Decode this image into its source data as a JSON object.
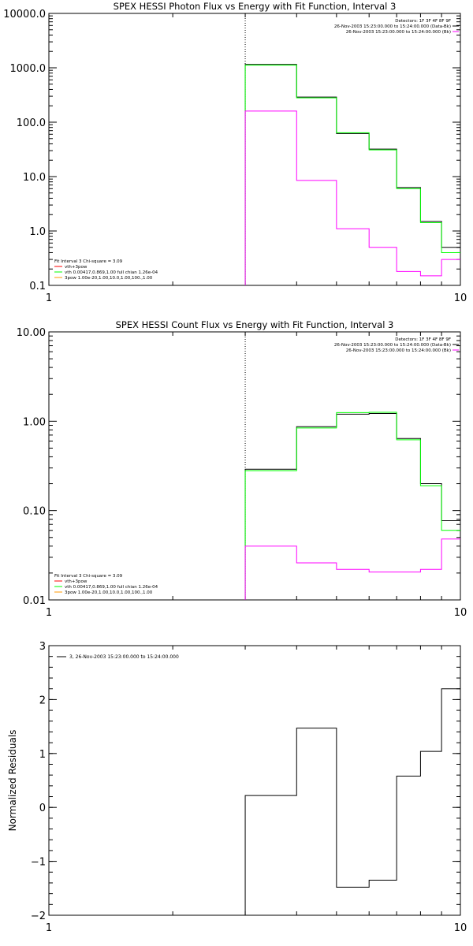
{
  "colors": {
    "black": "#000000",
    "green": "#00ff00",
    "magenta": "#ff00ff",
    "orange": "#ff9900",
    "red": "#ff0000"
  },
  "chart_data": [
    {
      "type": "line",
      "title": "SPEX HESSI Photon Flux vs Energy with Fit Function, Interval 3",
      "x_scale": "log",
      "y_scale": "log",
      "xlim": [
        1,
        10
      ],
      "ylim": [
        0.1,
        10000
      ],
      "x_ticks": [
        {
          "v": 1,
          "label": "1"
        },
        {
          "v": 10,
          "label": "10"
        }
      ],
      "y_ticks": [
        {
          "v": 0.1,
          "label": "0.1"
        },
        {
          "v": 1,
          "label": "1.0"
        },
        {
          "v": 10,
          "label": "10.0"
        },
        {
          "v": 100,
          "label": "100.0"
        },
        {
          "v": 1000,
          "label": "1000.0"
        },
        {
          "v": 10000,
          "label": "10000.0"
        }
      ],
      "vline": 3.0,
      "legend_right": [
        "Detectors: 1F 3F 4F 8F 9F",
        "26-Nov-2003 15:23:00.000 to 15:24:00.000 (Data-Bk)",
        "26-Nov-2003 15:23:00.000 to 15:24:00.000 (Bk)"
      ],
      "legend_right_colors": [
        "",
        "black",
        "magenta"
      ],
      "legend_left": [
        "Fit Interval 3   Chi-square = 3.09",
        "vth+3pow",
        "vth 0.00417,0.869,1.00   full chian 1.26e-04",
        "3pow 1.00e-20,1.00,10.0,1.00,100.,1.00"
      ],
      "legend_left_colors": [
        "",
        "red",
        "green",
        "orange"
      ],
      "edges": [
        3.0,
        4.0,
        5.0,
        6.0,
        7.0,
        8.0,
        9.0,
        10.0
      ],
      "series": [
        {
          "color": "black",
          "values": [
            1150,
            290,
            62,
            32,
            6.3,
            1.5,
            0.5
          ]
        },
        {
          "color": "green",
          "values": [
            1120,
            280,
            64,
            31,
            6.0,
            1.42,
            0.4
          ]
        },
        {
          "color": "magenta",
          "values": [
            160,
            8.5,
            1.1,
            0.5,
            0.18,
            0.15,
            0.3
          ]
        }
      ]
    },
    {
      "type": "line",
      "title": "SPEX HESSI Count Flux vs Energy with Fit Function, Interval 3",
      "x_scale": "log",
      "y_scale": "log",
      "xlim": [
        1,
        10
      ],
      "ylim": [
        0.01,
        10
      ],
      "x_ticks": [
        {
          "v": 1,
          "label": "1"
        },
        {
          "v": 10,
          "label": "10"
        }
      ],
      "y_ticks": [
        {
          "v": 0.01,
          "label": "0.01"
        },
        {
          "v": 0.1,
          "label": "0.10"
        },
        {
          "v": 1,
          "label": "1.00"
        },
        {
          "v": 10,
          "label": "10.00"
        }
      ],
      "vline": 3.0,
      "legend_right": [
        "Detectors: 1F 3F 4F 8F 9F",
        "26-Nov-2003 15:23:00.000 to 15:24:00.000 (Data-Bk)",
        "26-Nov-2003 15:23:00.000 to 15:24:00.000 (Bk)"
      ],
      "legend_right_colors": [
        "",
        "black",
        "magenta"
      ],
      "legend_left": [
        "Fit Interval 3   Chi-square = 3.09",
        "vth+3pow",
        "vth 0.00417,0.869,1.00   full chian 1.26e-04",
        "3pow 1.00e-20,1.00,10.0,1.00,100.,1.00"
      ],
      "legend_left_colors": [
        "",
        "red",
        "green",
        "orange"
      ],
      "edges": [
        3.0,
        4.0,
        5.0,
        6.0,
        7.0,
        8.0,
        9.0,
        10.0
      ],
      "series": [
        {
          "color": "black",
          "values": [
            0.29,
            0.87,
            1.2,
            1.22,
            0.64,
            0.2,
            0.077
          ]
        },
        {
          "color": "green",
          "values": [
            0.28,
            0.84,
            1.25,
            1.26,
            0.62,
            0.19,
            0.06
          ]
        },
        {
          "color": "magenta",
          "values": [
            0.04,
            0.026,
            0.022,
            0.0205,
            0.0205,
            0.022,
            0.048
          ]
        }
      ]
    },
    {
      "type": "line",
      "title": "",
      "ylabel": "Normalized Residuals",
      "x_scale": "log",
      "y_scale": "linear",
      "xlim": [
        1,
        10
      ],
      "ylim": [
        -2,
        3
      ],
      "x_ticks": [
        {
          "v": 1,
          "label": "1"
        },
        {
          "v": 10,
          "label": "10"
        }
      ],
      "y_ticks": [
        {
          "v": -2,
          "label": "−2"
        },
        {
          "v": -1,
          "label": "−1"
        },
        {
          "v": 0,
          "label": "0"
        },
        {
          "v": 1,
          "label": "1"
        },
        {
          "v": 2,
          "label": "2"
        },
        {
          "v": 3,
          "label": "3"
        }
      ],
      "legend_top": "3, 26-Nov-2003 15:23:00.000 to 15:24:00.000",
      "edges": [
        3.0,
        4.0,
        5.0,
        6.0,
        7.0,
        8.0,
        9.0,
        10.0
      ],
      "series": [
        {
          "color": "black",
          "values": [
            0.22,
            1.47,
            -1.48,
            -1.35,
            0.58,
            1.04,
            2.2
          ]
        }
      ]
    }
  ]
}
